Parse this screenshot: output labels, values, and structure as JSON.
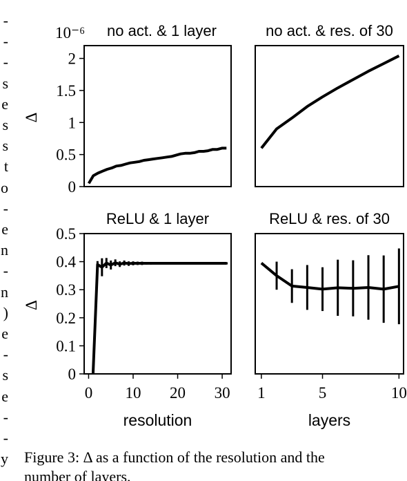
{
  "margin_text": [
    "-",
    "-",
    "-",
    "s",
    "e",
    "s",
    "s",
    "t",
    "o",
    "-",
    "e",
    "n",
    "-",
    "n",
    ")",
    "e",
    "-",
    "s",
    "e",
    "-",
    "-",
    "y"
  ],
  "caption": {
    "line1": "Figure 3: Δ as a function of the resolution and the",
    "line2": "number of layers."
  },
  "chart_data": [
    {
      "type": "line",
      "title": "no act. & 1 layer",
      "scale_label": "10⁻⁶",
      "ylabel": "Δ",
      "xlabel": "",
      "xlim": [
        0,
        32
      ],
      "ylim": [
        0,
        2.2
      ],
      "yticks": [
        "0",
        "0.5",
        "1",
        "1.5",
        "2"
      ],
      "ytick_values": [
        0,
        0.5,
        1,
        1.5,
        2
      ],
      "xticks": [],
      "xtick_values": [],
      "series": [
        {
          "x": [
            1,
            2,
            3,
            4,
            5,
            6,
            7,
            8,
            9,
            10,
            11,
            12,
            13,
            14,
            15,
            16,
            17,
            18,
            19,
            20,
            21,
            22,
            23,
            24,
            25,
            26,
            27,
            28,
            29,
            30,
            31
          ],
          "y": [
            0.05,
            0.17,
            0.21,
            0.24,
            0.27,
            0.29,
            0.32,
            0.33,
            0.35,
            0.37,
            0.38,
            0.39,
            0.41,
            0.42,
            0.43,
            0.44,
            0.45,
            0.46,
            0.47,
            0.49,
            0.51,
            0.52,
            0.52,
            0.53,
            0.55,
            0.55,
            0.56,
            0.58,
            0.58,
            0.6,
            0.6
          ],
          "color": "#000000"
        }
      ]
    },
    {
      "type": "line",
      "title": "no act. & res. of 30",
      "ylabel": "",
      "xlabel": "",
      "xlim": [
        0.6,
        10.3
      ],
      "ylim": [
        0,
        2.2
      ],
      "yticks": [],
      "ytick_values": [],
      "xticks": [],
      "xtick_values": [],
      "series": [
        {
          "x": [
            1,
            2,
            3,
            4,
            5,
            6,
            7,
            8,
            9,
            10
          ],
          "y": [
            0.6,
            0.9,
            1.07,
            1.25,
            1.4,
            1.54,
            1.67,
            1.8,
            1.92,
            2.04
          ],
          "color": "#000000"
        }
      ]
    },
    {
      "type": "line",
      "title": "ReLU & 1 layer",
      "ylabel": "Δ",
      "xlabel": "resolution",
      "xlim": [
        -1,
        32
      ],
      "ylim": [
        0,
        0.5
      ],
      "yticks": [
        "0",
        "0.1",
        "0.2",
        "0.3",
        "0.4",
        "0.5"
      ],
      "ytick_values": [
        0,
        0.1,
        0.2,
        0.3,
        0.4,
        0.5
      ],
      "xticks": [
        "0",
        "10",
        "20",
        "30"
      ],
      "xtick_values": [
        0,
        10,
        20,
        30
      ],
      "series": [
        {
          "x": [
            1,
            2,
            3,
            4,
            5,
            6,
            7,
            8,
            9,
            10,
            11,
            12,
            13,
            14,
            15,
            16,
            17,
            18,
            19,
            20,
            21,
            22,
            23,
            24,
            25,
            26,
            27,
            28,
            29,
            30,
            31
          ],
          "y": [
            0,
            0.39,
            0.38,
            0.395,
            0.388,
            0.396,
            0.391,
            0.395,
            0.393,
            0.394,
            0.394,
            0.394,
            0.394,
            0.394,
            0.394,
            0.394,
            0.394,
            0.394,
            0.394,
            0.394,
            0.394,
            0.394,
            0.394,
            0.394,
            0.394,
            0.394,
            0.394,
            0.394,
            0.394,
            0.394,
            0.394
          ],
          "err": [
            0,
            0.012,
            0.032,
            0.018,
            0.016,
            0.012,
            0.01,
            0.009,
            0.008,
            0.007,
            0.006,
            0.006,
            0.005,
            0.005,
            0.004,
            0.004,
            0.004,
            0.004,
            0.004,
            0.004,
            0.004,
            0.004,
            0.004,
            0.004,
            0.004,
            0.004,
            0.004,
            0.004,
            0.004,
            0.004,
            0.004
          ],
          "color": "#000000"
        }
      ]
    },
    {
      "type": "line",
      "title": "ReLU & res. of 30",
      "ylabel": "",
      "xlabel": "layers",
      "xlim": [
        0.6,
        10.3
      ],
      "ylim": [
        0,
        0.5
      ],
      "yticks": [],
      "ytick_values": [],
      "xticks": [
        "1",
        "5",
        "10"
      ],
      "xtick_values": [
        1,
        5,
        10
      ],
      "series": [
        {
          "x": [
            1,
            2,
            3,
            4,
            5,
            6,
            7,
            8,
            9,
            10
          ],
          "y": [
            0.395,
            0.35,
            0.313,
            0.308,
            0.302,
            0.307,
            0.305,
            0.308,
            0.302,
            0.312
          ],
          "err": [
            0,
            0.05,
            0.06,
            0.08,
            0.078,
            0.1,
            0.1,
            0.115,
            0.12,
            0.135
          ],
          "color": "#000000"
        }
      ]
    }
  ]
}
